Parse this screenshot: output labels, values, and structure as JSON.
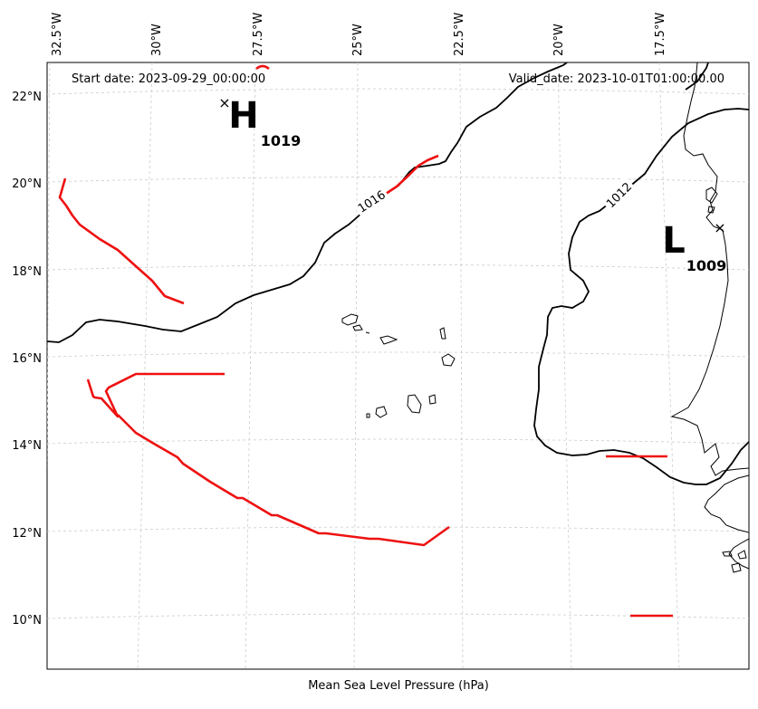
{
  "header": {
    "start_date": "Start date: 2023-09-29_00:00:00",
    "valid_date": "Valid_date: 2023-10-01T01:00:00.00"
  },
  "caption": "Mean Sea Level Pressure (hPa)",
  "longitude_labels": [
    "32.5°W",
    "30°W",
    "27.5°W",
    "25°W",
    "22.5°W",
    "20°W",
    "17.5°W"
  ],
  "latitude_labels": [
    "22°N",
    "20°N",
    "18°N",
    "16°N",
    "14°N",
    "12°N",
    "10°N"
  ],
  "pressure_centers": [
    {
      "type": "H",
      "value": "1019"
    },
    {
      "type": "L",
      "value": "1009"
    }
  ],
  "contours": [
    {
      "label": "1016"
    },
    {
      "label": "1012"
    }
  ],
  "colors": {
    "isobar": "#000000",
    "front": "#ee1111",
    "grid": "#cccccc",
    "coast": "#000000"
  }
}
